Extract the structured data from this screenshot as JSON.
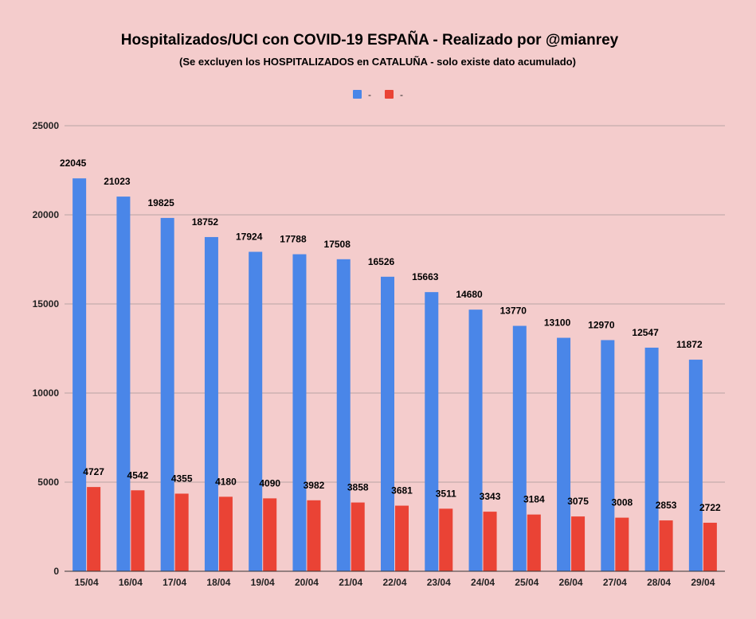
{
  "chart_data": {
    "type": "bar",
    "title": "Hospitalizados/UCI con COVID-19 ESPAÑA - Realizado por @mianrey",
    "subtitle": "(Se excluyen los HOSPITALIZADOS en CATALUÑA - solo existe dato acumulado)",
    "xlabel": "",
    "ylabel": "",
    "ylim": [
      0,
      25000
    ],
    "yticks": [
      0,
      5000,
      10000,
      15000,
      20000,
      25000
    ],
    "grid": true,
    "legend_position": "top-center",
    "categories": [
      "15/04",
      "16/04",
      "17/04",
      "18/04",
      "19/04",
      "20/04",
      "21/04",
      "22/04",
      "23/04",
      "24/04",
      "25/04",
      "26/04",
      "27/04",
      "28/04",
      "29/04"
    ],
    "series": [
      {
        "name": "-",
        "color": "#4a86e8",
        "values": [
          22045,
          21023,
          19825,
          18752,
          17924,
          17788,
          17508,
          16526,
          15663,
          14680,
          13770,
          13100,
          12970,
          12547,
          11872
        ]
      },
      {
        "name": "-",
        "color": "#ea4335",
        "values": [
          4727,
          4542,
          4355,
          4180,
          4090,
          3982,
          3858,
          3681,
          3511,
          3343,
          3184,
          3075,
          3008,
          2853,
          2722
        ]
      }
    ]
  },
  "colors": {
    "background": "#f4cccc",
    "gridline": "#b7a3a3",
    "axis": "#333333"
  }
}
